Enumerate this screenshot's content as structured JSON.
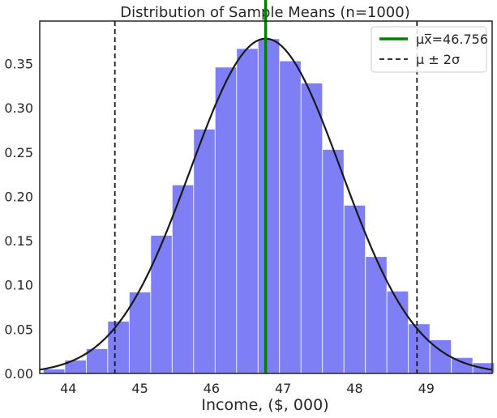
{
  "chart_data": {
    "type": "bar",
    "title": "Distribution of Sample Means (n=1000)",
    "xlabel": "Income, ($, 000)",
    "ylabel": "",
    "xlim": [
      43.6,
      49.92
    ],
    "ylim": [
      0,
      0.398
    ],
    "xticks": [
      {
        "value": 44,
        "label": "44"
      },
      {
        "value": 45,
        "label": "45"
      },
      {
        "value": 46,
        "label": "46"
      },
      {
        "value": 47,
        "label": "47"
      },
      {
        "value": 48,
        "label": "48"
      },
      {
        "value": 49,
        "label": "49"
      }
    ],
    "yticks": [
      {
        "value": 0.0,
        "label": "0.00"
      },
      {
        "value": 0.05,
        "label": "0.05"
      },
      {
        "value": 0.1,
        "label": "0.10"
      },
      {
        "value": 0.15,
        "label": "0.15"
      },
      {
        "value": 0.2,
        "label": "0.20"
      },
      {
        "value": 0.25,
        "label": "0.25"
      },
      {
        "value": 0.3,
        "label": "0.30"
      },
      {
        "value": 0.35,
        "label": "0.35"
      }
    ],
    "histogram": {
      "bin_edges": [
        43.65,
        43.95,
        44.25,
        44.55,
        44.85,
        45.15,
        45.45,
        45.75,
        46.05,
        46.35,
        46.65,
        46.95,
        47.25,
        47.55,
        47.85,
        48.15,
        48.45,
        48.75,
        49.05,
        49.35,
        49.65,
        49.95
      ],
      "densities": [
        0.005,
        0.015,
        0.028,
        0.059,
        0.092,
        0.156,
        0.213,
        0.276,
        0.346,
        0.367,
        0.378,
        0.353,
        0.328,
        0.253,
        0.19,
        0.132,
        0.093,
        0.056,
        0.038,
        0.018,
        0.012
      ],
      "color": "#7f7ff5"
    },
    "normal_curve": {
      "mean": 46.756,
      "sd": 1.055,
      "color": "#1a1a1a"
    },
    "mean_line": {
      "x": 46.756,
      "color": "#008000"
    },
    "sigma_lines": {
      "x": [
        44.65,
        48.87
      ],
      "color": "#1a1a1a"
    },
    "legend": {
      "position": "top-right",
      "entries": [
        {
          "label": "μx̅=46.756",
          "style": "solid",
          "color": "#008000"
        },
        {
          "label": "μ ± 2σ",
          "style": "dashed",
          "color": "#1a1a1a"
        }
      ]
    },
    "grid": false
  }
}
